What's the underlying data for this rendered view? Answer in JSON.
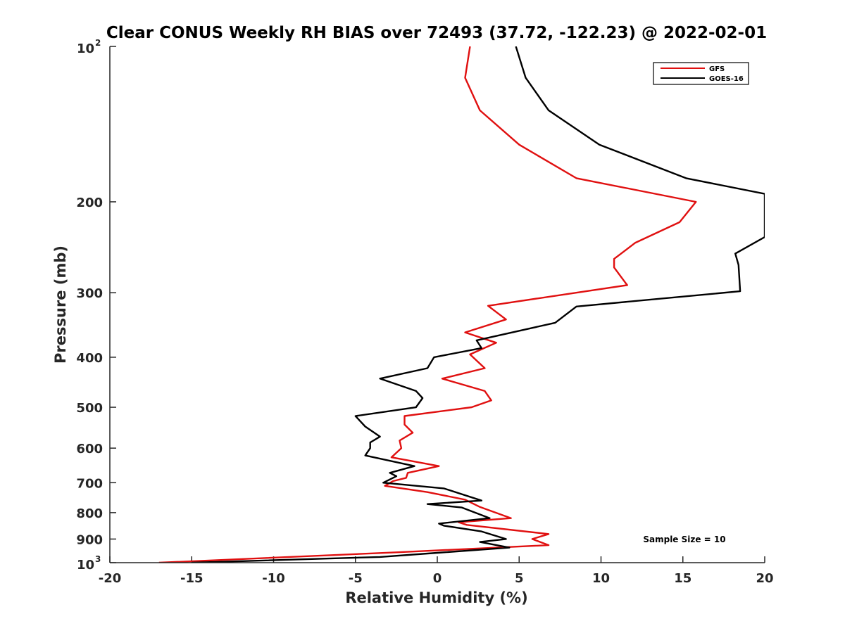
{
  "chart_data": {
    "type": "line",
    "title": "Clear CONUS Weekly RH BIAS over 72493 (37.72, -122.23) @ 2022-02-01",
    "xlabel": "Relative Humidity (%)",
    "ylabel": "Pressure (mb)",
    "xlim": [
      -20,
      20
    ],
    "ylim": [
      100,
      1000
    ],
    "y_scale": "log",
    "y_reversed": true,
    "grid": false,
    "legend_position": "top-right",
    "x_ticks": [
      "-20",
      "-15",
      "-10",
      "-5",
      "0",
      "5",
      "10",
      "15",
      "20"
    ],
    "y_ticks": [
      {
        "value": 100,
        "base": "10",
        "exp": "2"
      },
      {
        "value": 200,
        "label": "200"
      },
      {
        "value": 300,
        "label": "300"
      },
      {
        "value": 400,
        "label": "400"
      },
      {
        "value": 500,
        "label": "500"
      },
      {
        "value": 600,
        "label": "600"
      },
      {
        "value": 700,
        "label": "700"
      },
      {
        "value": 800,
        "label": "800"
      },
      {
        "value": 900,
        "label": "900"
      },
      {
        "value": 1000,
        "base": "10",
        "exp": "3"
      }
    ],
    "annotation": "Sample Size = 10",
    "series": [
      {
        "name": "GFS",
        "color": "#e01010",
        "points": [
          [
            2.0,
            100
          ],
          [
            1.7,
            115
          ],
          [
            2.6,
            133
          ],
          [
            5.0,
            155
          ],
          [
            8.5,
            180
          ],
          [
            15.8,
            200
          ],
          [
            14.8,
            219
          ],
          [
            12.1,
            240
          ],
          [
            10.8,
            258
          ],
          [
            10.8,
            268
          ],
          [
            11.6,
            290
          ],
          [
            3.1,
            318
          ],
          [
            4.2,
            338
          ],
          [
            1.7,
            358
          ],
          [
            3.6,
            375
          ],
          [
            2.0,
            395
          ],
          [
            2.9,
            420
          ],
          [
            0.3,
            440
          ],
          [
            2.9,
            465
          ],
          [
            3.3,
            485
          ],
          [
            2.1,
            500
          ],
          [
            -2.0,
            520
          ],
          [
            -2.0,
            540
          ],
          [
            -1.5,
            560
          ],
          [
            -2.3,
            580
          ],
          [
            -2.2,
            600
          ],
          [
            -2.8,
            625
          ],
          [
            0.1,
            650
          ],
          [
            -1.8,
            670
          ],
          [
            -1.9,
            685
          ],
          [
            -2.7,
            695
          ],
          [
            -3.2,
            710
          ],
          [
            -0.6,
            730
          ],
          [
            1.7,
            755
          ],
          [
            2.6,
            780
          ],
          [
            4.5,
            820
          ],
          [
            1.3,
            835
          ],
          [
            1.8,
            845
          ],
          [
            6.8,
            880
          ],
          [
            5.8,
            900
          ],
          [
            6.8,
            925
          ],
          [
            -2.5,
            955
          ],
          [
            -17.0,
            1000
          ]
        ]
      },
      {
        "name": "GOES-16",
        "color": "#000000",
        "points": [
          [
            4.8,
            100
          ],
          [
            5.4,
            115
          ],
          [
            6.8,
            133
          ],
          [
            9.9,
            155
          ],
          [
            15.2,
            180
          ],
          [
            20.0,
            193
          ],
          [
            20.0,
            234
          ],
          [
            18.2,
            252
          ],
          [
            18.4,
            265
          ],
          [
            18.5,
            298
          ],
          [
            8.5,
            319
          ],
          [
            7.2,
            343
          ],
          [
            2.4,
            371
          ],
          [
            2.7,
            384
          ],
          [
            -0.2,
            400
          ],
          [
            -0.6,
            420
          ],
          [
            -3.5,
            440
          ],
          [
            -1.3,
            465
          ],
          [
            -0.9,
            480
          ],
          [
            -1.3,
            500
          ],
          [
            -5.0,
            520
          ],
          [
            -4.4,
            545
          ],
          [
            -3.5,
            570
          ],
          [
            -4.1,
            585
          ],
          [
            -4.1,
            600
          ],
          [
            -4.4,
            620
          ],
          [
            -1.4,
            650
          ],
          [
            -2.9,
            670
          ],
          [
            -2.5,
            680
          ],
          [
            -3.3,
            700
          ],
          [
            0.4,
            718
          ],
          [
            2.7,
            758
          ],
          [
            -0.6,
            770
          ],
          [
            1.5,
            782
          ],
          [
            3.2,
            820
          ],
          [
            0.1,
            840
          ],
          [
            0.4,
            848
          ],
          [
            2.7,
            870
          ],
          [
            4.2,
            900
          ],
          [
            2.6,
            912
          ],
          [
            4.4,
            935
          ],
          [
            0.0,
            957
          ],
          [
            -3.5,
            975
          ],
          [
            -15.0,
            1000
          ]
        ]
      }
    ]
  }
}
